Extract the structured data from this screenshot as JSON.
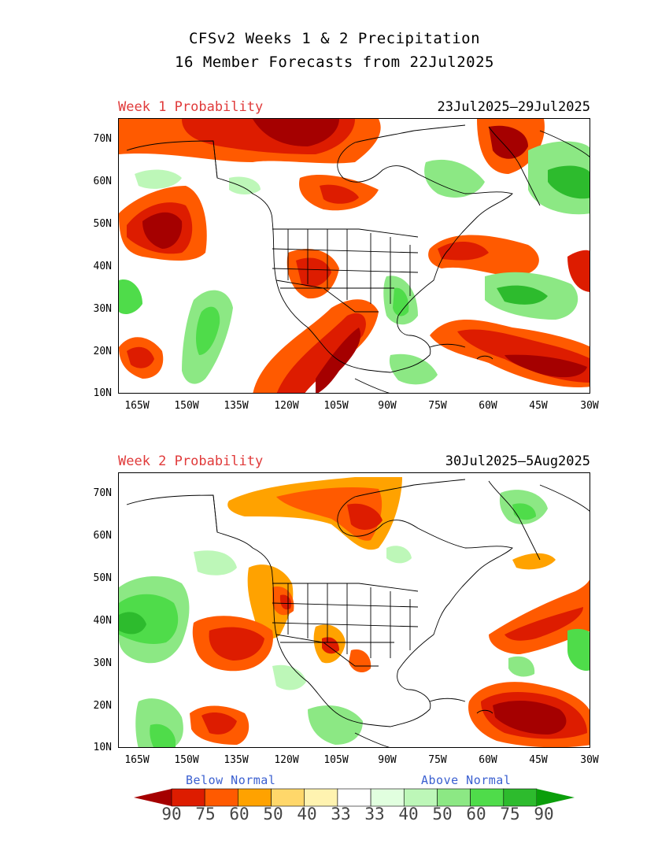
{
  "header": {
    "title_line1": "CFSv2 Weeks 1 & 2 Precipitation",
    "title_line2": "16 Member Forecasts from 22Jul2025"
  },
  "panels": [
    {
      "label": "Week 1 Probability",
      "date_range": "23Jul2025—29Jul2025",
      "lat_ticks": [
        "70N",
        "60N",
        "50N",
        "40N",
        "30N",
        "20N",
        "10N"
      ],
      "lon_ticks": [
        "165W",
        "150W",
        "135W",
        "120W",
        "105W",
        "90W",
        "75W",
        "60W",
        "45W",
        "30W"
      ]
    },
    {
      "label": "Week 2 Probability",
      "date_range": "30Jul2025—5Aug2025",
      "lat_ticks": [
        "70N",
        "60N",
        "50N",
        "40N",
        "30N",
        "20N",
        "10N"
      ],
      "lon_ticks": [
        "165W",
        "150W",
        "135W",
        "120W",
        "105W",
        "90W",
        "75W",
        "60W",
        "45W",
        "30W"
      ]
    }
  ],
  "legend": {
    "below_label": "Below Normal",
    "above_label": "Above Normal",
    "labels": [
      "90",
      "75",
      "60",
      "50",
      "40",
      "33",
      "33",
      "40",
      "50",
      "60",
      "75",
      "90"
    ],
    "colors": [
      "#a50000",
      "#dd1c00",
      "#ff5a00",
      "#ffa200",
      "#ffd76a",
      "#fff3b0",
      "#ffffff",
      "#e1ffdf",
      "#bdf7b8",
      "#8ce884",
      "#4fdc4a",
      "#2dbb2d",
      "#0b9e0b"
    ]
  }
}
